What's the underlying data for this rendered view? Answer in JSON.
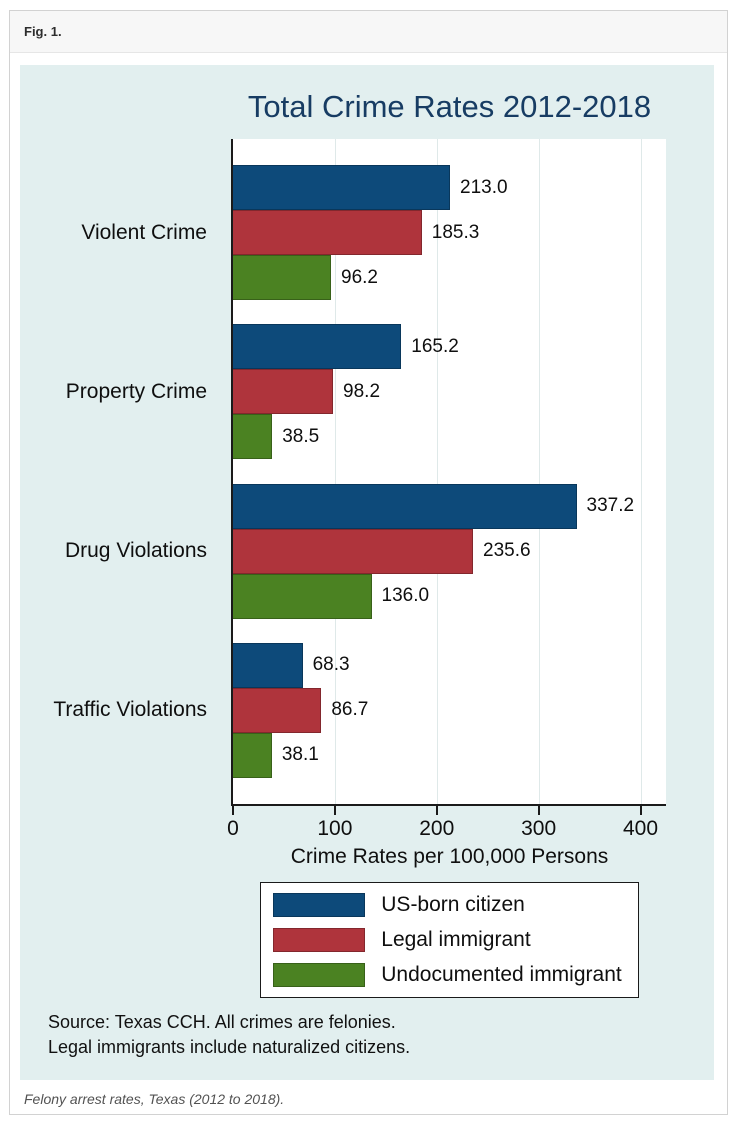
{
  "figure": {
    "label": "Fig. 1.",
    "caption": "Felony arrest rates, Texas (2012 to 2018)."
  },
  "chart_data": {
    "type": "bar",
    "orientation": "horizontal",
    "title": "Total Crime Rates 2012-2018",
    "xlabel": "Crime Rates per 100,000 Persons",
    "categories": [
      "Violent Crime",
      "Property Crime",
      "Drug Violations",
      "Traffic Violations"
    ],
    "series": [
      {
        "name": "US-born citizen",
        "color": "#0d4a7a",
        "values": [
          213.0,
          165.2,
          337.2,
          68.3
        ]
      },
      {
        "name": "Legal immigrant",
        "color": "#af343c",
        "values": [
          185.3,
          98.2,
          235.6,
          86.7
        ]
      },
      {
        "name": "Undocumented immigrant",
        "color": "#4b8222",
        "values": [
          96.2,
          38.5,
          136.0,
          38.1
        ]
      }
    ],
    "value_label_decimals": 1,
    "xticks": [
      0,
      100,
      200,
      300,
      400
    ],
    "xlim": [
      0,
      425
    ],
    "grid": true,
    "legend_position": "bottom",
    "notes": [
      "Source: Texas CCH. All crimes are felonies.",
      "Legal immigrants include naturalized citizens."
    ],
    "colors": {
      "panel_background": "#e2efef",
      "plot_background": "#ffffff",
      "title": "#173c63",
      "axis": "#1a1a1a",
      "gridline": "#dfe9e9"
    }
  }
}
